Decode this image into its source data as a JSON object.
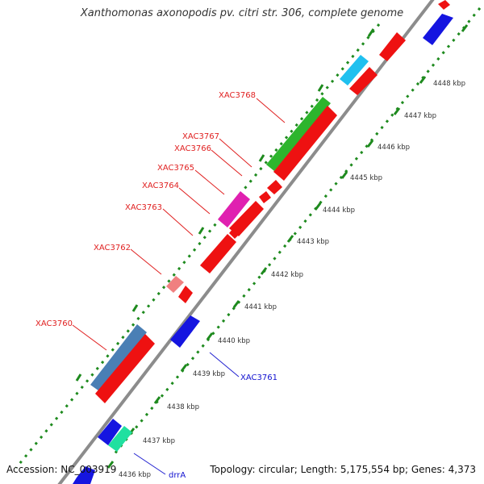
{
  "header": {
    "title": "Xanthomonas axonopodis pv. citri str. 306, complete genome"
  },
  "footer": {
    "accession": "Accession: NC_003919",
    "summary": "Topology: circular; Length: 5,175,554 bp; Genes: 4,373"
  },
  "colors": {
    "backbone": "#8c8c8c",
    "tick": "#1e8a1e",
    "label_forward": "#e02020",
    "label_reverse": "#1010d0",
    "line_forward": "#e02020",
    "line_reverse": "#2020d0"
  },
  "scale": {
    "unit": "kbp",
    "ticks": [
      "4436 kbp",
      "4437 kbp",
      "4438 kbp",
      "4439 kbp",
      "4440 kbp",
      "4441 kbp",
      "4442 kbp",
      "4443 kbp",
      "4444 kbp",
      "4445 kbp",
      "4446 kbp",
      "4447 kbp",
      "4448 kbp"
    ]
  },
  "labels": {
    "XAC3760": "XAC3760",
    "XAC3761": "XAC3761",
    "XAC3762": "XAC3762",
    "XAC3763": "XAC3763",
    "XAC3764": "XAC3764",
    "XAC3765": "XAC3765",
    "XAC3766": "XAC3766",
    "XAC3767": "XAC3767",
    "XAC3768": "XAC3768",
    "drrA": "drrA"
  }
}
